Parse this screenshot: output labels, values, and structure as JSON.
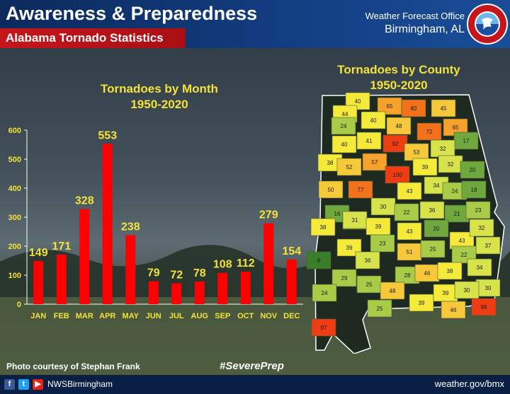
{
  "header": {
    "title": "Awareness & Preparedness",
    "subtitle": "Alabama Tornado Statistics",
    "office_line1": "Weather Forecast Office",
    "office_line2": "Birmingham, AL",
    "logo_text": "NATIONAL WEATHER SERVICE"
  },
  "colors": {
    "bar": "#ff0000",
    "label": "#f4e23a",
    "header_blue": "#123d80",
    "header_red": "#c4161c"
  },
  "chart_data": [
    {
      "type": "bar",
      "title": "Tornadoes by Month",
      "subtitle": "1950-2020",
      "xlabel": "",
      "ylabel": "",
      "categories": [
        "JAN",
        "FEB",
        "MAR",
        "APR",
        "MAY",
        "JUN",
        "JUL",
        "AUG",
        "SEP",
        "OCT",
        "NOV",
        "DEC"
      ],
      "values": [
        149,
        171,
        328,
        553,
        238,
        79,
        72,
        78,
        108,
        112,
        279,
        154
      ],
      "ylim": [
        0,
        600
      ],
      "yticks": [
        0,
        100,
        200,
        300,
        400,
        500,
        600
      ],
      "grid": false
    },
    {
      "type": "heatmap",
      "title": "Tornadoes by County",
      "subtitle": "1950-2020",
      "county_counts": [
        40,
        65,
        80,
        45,
        44,
        40,
        24,
        48,
        72,
        65,
        17,
        41,
        40,
        92,
        53,
        32,
        38,
        52,
        57,
        39,
        32,
        20,
        100,
        50,
        77,
        43,
        34,
        24,
        18,
        16,
        30,
        32,
        22,
        36,
        21,
        23,
        38,
        31,
        39,
        43,
        20,
        43,
        32,
        37,
        39,
        23,
        51,
        25,
        22,
        8,
        36,
        29,
        28,
        46,
        38,
        34,
        30,
        24,
        25,
        48,
        39,
        39,
        30,
        25,
        46,
        98,
        97
      ]
    }
  ],
  "footer": {
    "photo_credit": "Photo courtesy of Stephan Frank",
    "hashtag": "#SeverePrep",
    "social_handle": "NWSBirmingham",
    "website": "weather.gov/bmx"
  }
}
